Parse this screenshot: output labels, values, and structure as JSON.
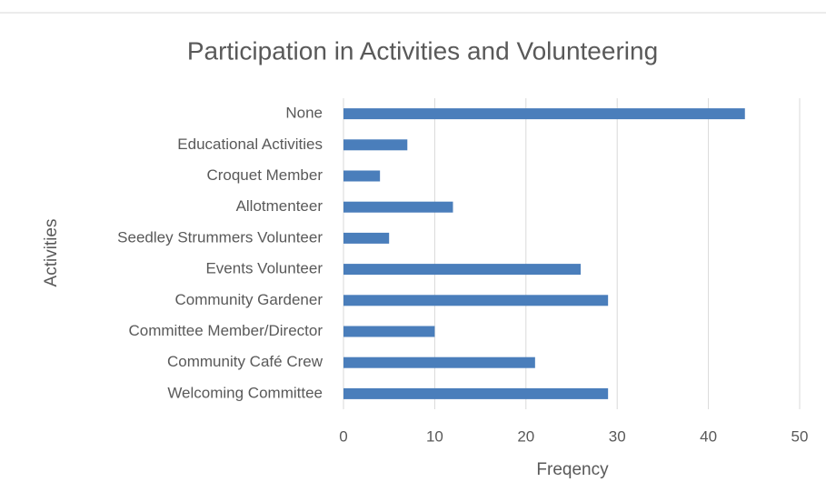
{
  "chart_data": {
    "type": "bar",
    "orientation": "horizontal",
    "title": "Participation in Activities and Volunteering",
    "x_label": "Freqency",
    "y_label": "Activities",
    "categories": [
      "None",
      "Educational Activities",
      "Croquet Member",
      "Allotmenteer",
      "Seedley Strummers Volunteer",
      "Events Volunteer",
      "Community Gardener",
      "Committee Member/Director",
      "Community Café Crew",
      "Welcoming Committee"
    ],
    "values": [
      44,
      7,
      4,
      12,
      5,
      26,
      29,
      10,
      21,
      29
    ],
    "color": "#4a7ebb",
    "xlim": [
      0,
      50
    ],
    "xticks": [
      0,
      10,
      20,
      30,
      40,
      50
    ],
    "grid": true
  }
}
